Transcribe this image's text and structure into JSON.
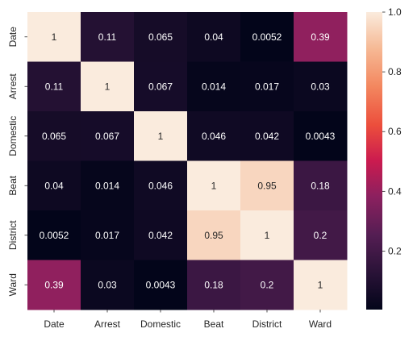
{
  "chart_data": {
    "type": "heatmap",
    "title": "",
    "xlabel": "",
    "ylabel": "",
    "x_categories": [
      "Date",
      "Arrest",
      "Domestic",
      "Beat",
      "District",
      "Ward"
    ],
    "y_categories": [
      "Date",
      "Arrest",
      "Domestic",
      "Beat",
      "District",
      "Ward"
    ],
    "values": [
      [
        1,
        0.11,
        0.065,
        0.04,
        0.0052,
        0.39
      ],
      [
        0.11,
        1,
        0.067,
        0.014,
        0.017,
        0.03
      ],
      [
        0.065,
        0.067,
        1,
        0.046,
        0.042,
        0.0043
      ],
      [
        0.04,
        0.014,
        0.046,
        1,
        0.95,
        0.18
      ],
      [
        0.0052,
        0.017,
        0.042,
        0.95,
        1,
        0.2
      ],
      [
        0.39,
        0.03,
        0.0043,
        0.18,
        0.2,
        1
      ]
    ],
    "cell_labels": [
      [
        "1",
        "0.11",
        "0.065",
        "0.04",
        "0.0052",
        "0.39"
      ],
      [
        "0.11",
        "1",
        "0.067",
        "0.014",
        "0.017",
        "0.03"
      ],
      [
        "0.065",
        "0.067",
        "1",
        "0.046",
        "0.042",
        "0.0043"
      ],
      [
        "0.04",
        "0.014",
        "0.046",
        "1",
        "0.95",
        "0.18"
      ],
      [
        "0.0052",
        "0.017",
        "0.042",
        "0.95",
        "1",
        "0.2"
      ],
      [
        "0.39",
        "0.03",
        "0.0043",
        "0.18",
        "0.2",
        "1"
      ]
    ],
    "colormap": "rocket",
    "colorbar": {
      "vmin": 0.0043,
      "vmax": 1,
      "ticks": [
        0.2,
        0.4,
        0.6,
        0.8,
        1.0
      ],
      "tick_labels": [
        "0.2",
        "0.4",
        "0.6",
        "0.8",
        "1.0"
      ]
    }
  }
}
